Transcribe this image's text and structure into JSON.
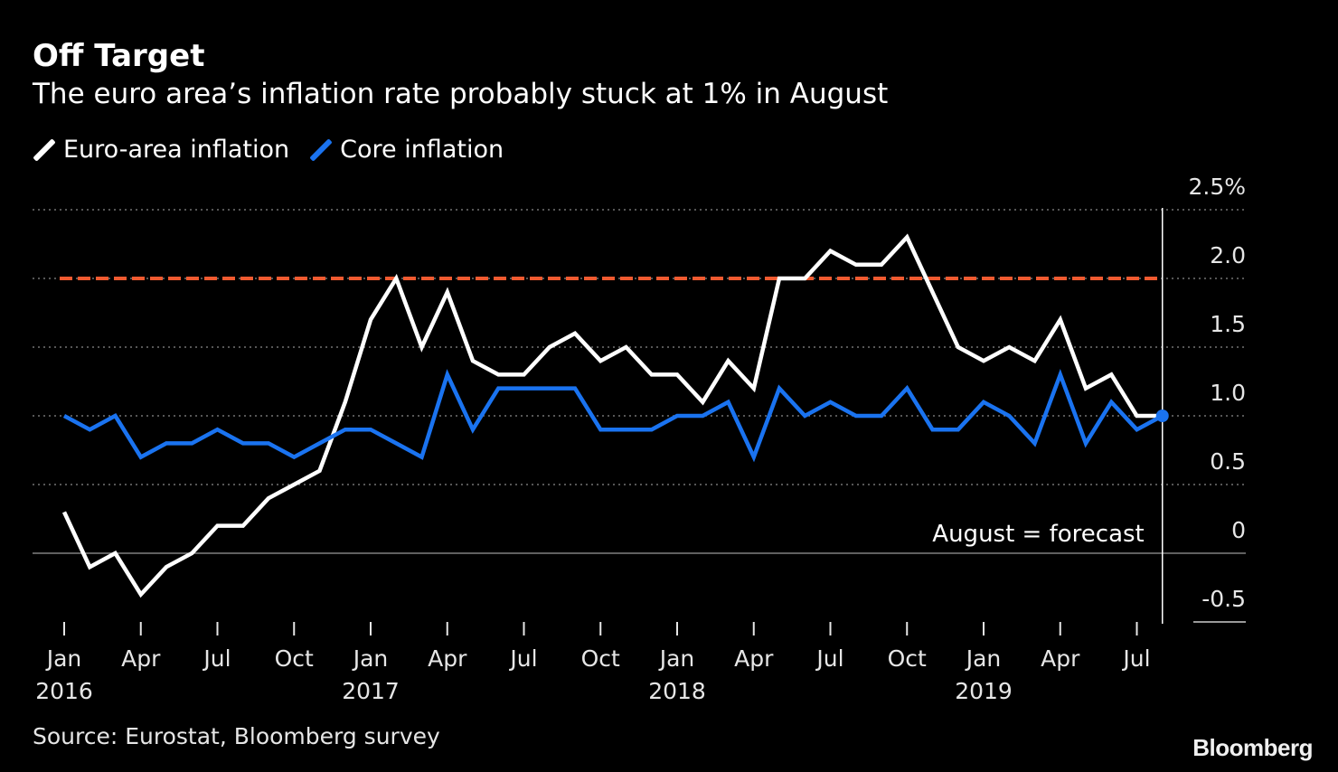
{
  "header": {
    "title": "Off Target",
    "subtitle": "The euro area’s inflation rate probably stuck at 1% in August"
  },
  "legend": [
    {
      "label": "Euro-area inflation",
      "color": "#ffffff"
    },
    {
      "label": "Core inflation",
      "color": "#1a73f0"
    }
  ],
  "footer": {
    "source": "Source: Eurostat, Bloomberg survey",
    "brand": "Bloomberg"
  },
  "chart_data": {
    "type": "line",
    "y_unit_label": "%",
    "ylim": [
      -0.5,
      2.5
    ],
    "yticks": [
      2.5,
      2.0,
      1.5,
      1.0,
      0.5,
      0,
      -0.5
    ],
    "ytick_labels": [
      "2.5%",
      "2.0",
      "1.5",
      "1.0",
      "0.5",
      "0",
      "-0.5"
    ],
    "grid": true,
    "legend_position": "top-left",
    "x": [
      "2016-01",
      "2016-02",
      "2016-03",
      "2016-04",
      "2016-05",
      "2016-06",
      "2016-07",
      "2016-08",
      "2016-09",
      "2016-10",
      "2016-11",
      "2016-12",
      "2017-01",
      "2017-02",
      "2017-03",
      "2017-04",
      "2017-05",
      "2017-06",
      "2017-07",
      "2017-08",
      "2017-09",
      "2017-10",
      "2017-11",
      "2017-12",
      "2018-01",
      "2018-02",
      "2018-03",
      "2018-04",
      "2018-05",
      "2018-06",
      "2018-07",
      "2018-08",
      "2018-09",
      "2018-10",
      "2018-11",
      "2018-12",
      "2019-01",
      "2019-02",
      "2019-03",
      "2019-04",
      "2019-05",
      "2019-06",
      "2019-07",
      "2019-08"
    ],
    "xticks": [
      {
        "month": "Jan",
        "year": "2016",
        "index": 0
      },
      {
        "month": "Apr",
        "year": "",
        "index": 3
      },
      {
        "month": "Jul",
        "year": "",
        "index": 6
      },
      {
        "month": "Oct",
        "year": "",
        "index": 9
      },
      {
        "month": "Jan",
        "year": "2017",
        "index": 12
      },
      {
        "month": "Apr",
        "year": "",
        "index": 15
      },
      {
        "month": "Jul",
        "year": "",
        "index": 18
      },
      {
        "month": "Oct",
        "year": "",
        "index": 21
      },
      {
        "month": "Jan",
        "year": "2018",
        "index": 24
      },
      {
        "month": "Apr",
        "year": "",
        "index": 27
      },
      {
        "month": "Jul",
        "year": "",
        "index": 30
      },
      {
        "month": "Oct",
        "year": "",
        "index": 33
      },
      {
        "month": "Jan",
        "year": "2019",
        "index": 36
      },
      {
        "month": "Apr",
        "year": "",
        "index": 39
      },
      {
        "month": "Jul",
        "year": "",
        "index": 42
      }
    ],
    "series": [
      {
        "name": "Euro-area inflation",
        "color": "#ffffff",
        "values": [
          0.3,
          -0.1,
          0.0,
          -0.3,
          -0.1,
          0.0,
          0.2,
          0.2,
          0.4,
          0.5,
          0.6,
          1.1,
          1.7,
          2.0,
          1.5,
          1.9,
          1.4,
          1.3,
          1.3,
          1.5,
          1.6,
          1.4,
          1.5,
          1.3,
          1.3,
          1.1,
          1.4,
          1.2,
          2.0,
          2.0,
          2.2,
          2.1,
          2.1,
          2.3,
          1.9,
          1.5,
          1.4,
          1.5,
          1.4,
          1.7,
          1.2,
          1.3,
          1.0,
          1.0
        ]
      },
      {
        "name": "Core inflation",
        "color": "#1a73f0",
        "values": [
          1.0,
          0.9,
          1.0,
          0.7,
          0.8,
          0.8,
          0.9,
          0.8,
          0.8,
          0.7,
          0.8,
          0.9,
          0.9,
          0.8,
          0.7,
          1.3,
          0.9,
          1.2,
          1.2,
          1.2,
          1.2,
          0.9,
          0.9,
          0.9,
          1.0,
          1.0,
          1.1,
          0.7,
          1.2,
          1.0,
          1.1,
          1.0,
          1.0,
          1.2,
          0.9,
          0.9,
          1.1,
          1.0,
          0.8,
          1.3,
          0.8,
          1.1,
          0.9,
          1.0
        ]
      }
    ],
    "target_line": {
      "value": 2.0,
      "color": "#f05a30"
    },
    "annotation": {
      "text": "August = forecast",
      "index": 43
    },
    "endpoint_marker_color": "#1a73f0"
  }
}
